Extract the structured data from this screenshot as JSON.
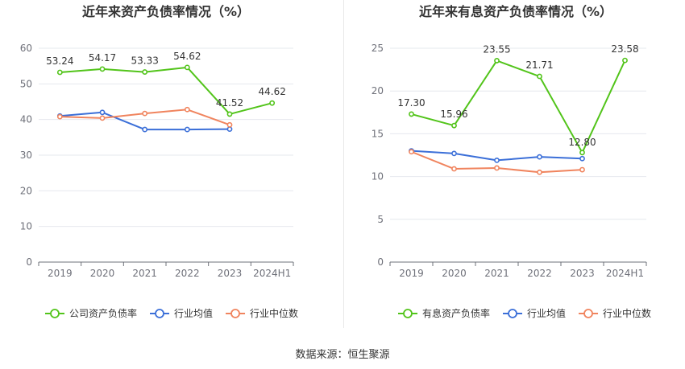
{
  "colors": {
    "green": "#52c41a",
    "blue": "#3b6fd8",
    "orange": "#f0845e",
    "grid": "#e6e8ee",
    "axis": "#6e7079",
    "text": "#333333"
  },
  "source": "数据来源：恒生聚源",
  "chart_data": [
    {
      "type": "line",
      "title": "近年来资产负债率情况（%）",
      "categories": [
        "2019",
        "2020",
        "2021",
        "2022",
        "2023",
        "2024H1"
      ],
      "ylim": [
        0,
        60
      ],
      "yticks": [
        0,
        10,
        20,
        30,
        40,
        50,
        60
      ],
      "grid": true,
      "legend_position": "bottom",
      "series": [
        {
          "name": "公司资产负债率",
          "color": "#52c41a",
          "values": [
            53.24,
            54.17,
            53.33,
            54.62,
            41.52,
            44.62
          ],
          "labels": [
            "53.24",
            "54.17",
            "53.33",
            "54.62",
            "41.52",
            "44.62"
          ]
        },
        {
          "name": "行业均值",
          "color": "#3b6fd8",
          "values": [
            41.0,
            42.0,
            37.2,
            37.2,
            37.3,
            null
          ]
        },
        {
          "name": "行业中位数",
          "color": "#f0845e",
          "values": [
            40.8,
            40.4,
            41.7,
            42.8,
            38.5,
            null
          ]
        }
      ]
    },
    {
      "type": "line",
      "title": "近年来有息资产负债率情况（%）",
      "categories": [
        "2019",
        "2020",
        "2021",
        "2022",
        "2023",
        "2024H1"
      ],
      "ylim": [
        0,
        25
      ],
      "yticks": [
        0,
        5,
        10,
        15,
        20,
        25
      ],
      "grid": true,
      "legend_position": "bottom",
      "series": [
        {
          "name": "有息资产负债率",
          "color": "#52c41a",
          "values": [
            17.3,
            15.96,
            23.55,
            21.71,
            12.8,
            23.58
          ],
          "labels": [
            "17.30",
            "15.96",
            "23.55",
            "21.71",
            "12.80",
            "23.58"
          ]
        },
        {
          "name": "行业均值",
          "color": "#3b6fd8",
          "values": [
            13.0,
            12.7,
            11.9,
            12.3,
            12.1,
            null
          ]
        },
        {
          "name": "行业中位数",
          "color": "#f0845e",
          "values": [
            12.9,
            10.9,
            11.0,
            10.5,
            10.8,
            null
          ]
        }
      ]
    }
  ]
}
